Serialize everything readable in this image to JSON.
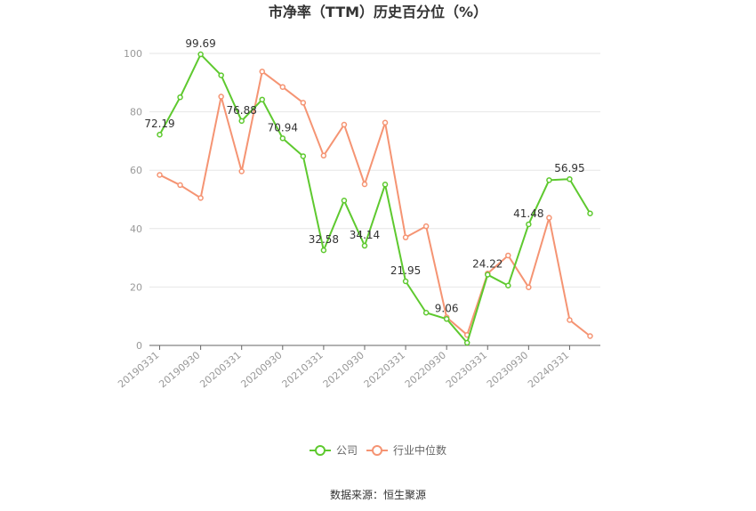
{
  "chart_data": {
    "type": "line",
    "title": "市净率（TTM）历史百分位（%）",
    "ylim": [
      0,
      100
    ],
    "yticks": [
      0,
      20,
      40,
      60,
      80,
      100
    ],
    "grid": true,
    "legend_placement": "bottom-center",
    "x": [
      "20190331",
      "20190630",
      "20190930",
      "20191231",
      "20200331",
      "20200630",
      "20200930",
      "20201231",
      "20210331",
      "20210630",
      "20210930",
      "20211231",
      "20220331",
      "20220630",
      "20220930",
      "20221231",
      "20230331",
      "20230630",
      "20230930",
      "20231231",
      "20240331",
      "20240630"
    ],
    "xtick_labels": [
      "20190331",
      "20190930",
      "20200331",
      "20200930",
      "20210331",
      "20210930",
      "20220331",
      "20220930",
      "20230331",
      "20230930",
      "20240331"
    ],
    "series": [
      {
        "name": "公司",
        "color": "#5ec92f",
        "values": [
          72.19,
          85.0,
          99.69,
          92.5,
          76.88,
          84.2,
          70.94,
          64.8,
          32.58,
          49.6,
          34.14,
          55.1,
          21.95,
          11.2,
          9.06,
          0.9,
          24.22,
          20.5,
          41.48,
          56.6,
          56.95,
          45.2
        ],
        "labels": {
          "0": "72.19",
          "2": "99.69",
          "4": "76.88",
          "6": "70.94",
          "8": "32.58",
          "10": "34.14",
          "12": "21.95",
          "14": "9.06",
          "16": "24.22",
          "18": "41.48",
          "20": "56.95"
        }
      },
      {
        "name": "行业中位数",
        "color": "#f59473",
        "values": [
          58.4,
          54.9,
          50.5,
          85.2,
          59.6,
          93.8,
          88.5,
          83.1,
          65.0,
          75.6,
          55.2,
          76.3,
          37.0,
          40.8,
          9.6,
          3.6,
          24.6,
          30.8,
          19.9,
          43.7,
          8.7,
          3.2
        ],
        "labels": {}
      }
    ]
  },
  "source_text": "数据来源：恒生聚源"
}
